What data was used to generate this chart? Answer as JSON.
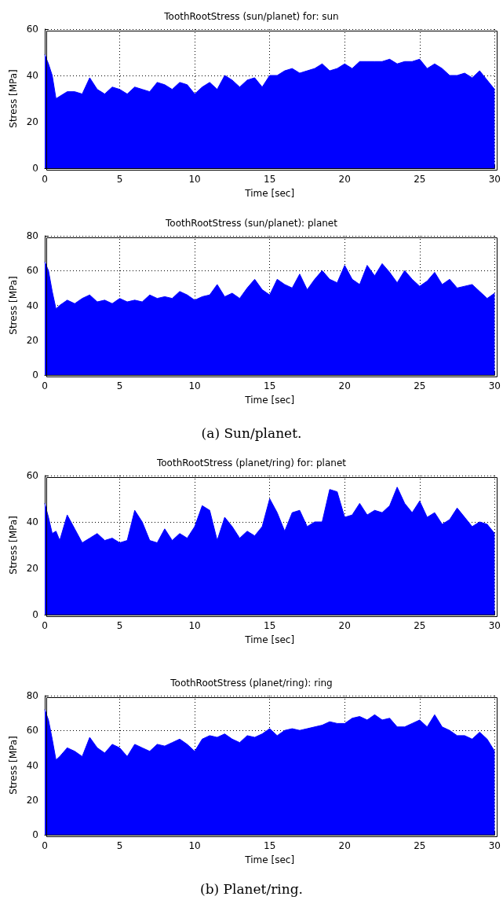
{
  "chart_data": [
    {
      "type": "area",
      "title": "ToothRootStress (sun/planet) for: sun",
      "xlabel": "Time [sec]",
      "ylabel": "Stress [MPa]",
      "xlim": [
        0,
        30
      ],
      "xticks": [
        0,
        5,
        10,
        15,
        20,
        25,
        30
      ],
      "ylim": [
        0,
        60
      ],
      "yticks": [
        0,
        20,
        40,
        60
      ],
      "grid": true,
      "x": [
        0,
        0.25,
        0.5,
        0.75,
        1,
        1.5,
        2,
        2.5,
        3,
        3.5,
        4,
        4.5,
        5,
        5.5,
        6,
        6.5,
        7,
        7.5,
        8,
        8.5,
        9,
        9.5,
        10,
        10.5,
        11,
        11.5,
        12,
        12.5,
        13,
        13.5,
        14,
        14.5,
        15,
        15.5,
        16,
        16.5,
        17,
        17.5,
        18,
        18.5,
        19,
        19.5,
        20,
        20.5,
        21,
        21.5,
        22,
        22.5,
        23,
        23.5,
        24,
        24.5,
        25,
        25.5,
        26,
        26.5,
        27,
        27.5,
        28,
        28.5,
        29,
        29.5,
        30
      ],
      "series": [
        {
          "color": "#0000ff",
          "values": [
            49,
            45,
            40,
            30,
            31,
            33,
            33,
            32,
            39,
            34,
            32,
            35,
            34,
            32,
            35,
            34,
            33,
            37,
            36,
            34,
            37,
            36,
            32,
            35,
            37,
            34,
            40,
            38,
            35,
            38,
            39,
            35,
            40,
            40,
            42,
            43,
            41,
            42,
            43,
            45,
            42,
            43,
            45,
            43,
            46,
            46,
            46,
            46,
            47,
            45,
            46,
            46,
            47,
            43,
            45,
            43,
            40,
            40,
            41,
            39,
            42,
            38,
            34
          ]
        }
      ]
    },
    {
      "type": "area",
      "title": "ToothRootStress (sun/planet): planet",
      "xlabel": "Time [sec]",
      "ylabel": "Stress [MPa]",
      "xlim": [
        0,
        30
      ],
      "xticks": [
        0,
        5,
        10,
        15,
        20,
        25,
        30
      ],
      "ylim": [
        0,
        80
      ],
      "yticks": [
        0,
        20,
        40,
        60,
        80
      ],
      "grid": true,
      "annotations": [
        "(a) Sun/planet."
      ],
      "x": [
        0,
        0.25,
        0.5,
        0.75,
        1,
        1.5,
        2,
        2.5,
        3,
        3.5,
        4,
        4.5,
        5,
        5.5,
        6,
        6.5,
        7,
        7.5,
        8,
        8.5,
        9,
        9.5,
        10,
        10.5,
        11,
        11.5,
        12,
        12.5,
        13,
        13.5,
        14,
        14.5,
        15,
        15.5,
        16,
        16.5,
        17,
        17.5,
        18,
        18.5,
        19,
        19.5,
        20,
        20.5,
        21,
        21.5,
        22,
        22.5,
        23,
        23.5,
        24,
        24.5,
        25,
        25.5,
        26,
        26.5,
        27,
        27.5,
        28,
        28.5,
        29,
        29.5,
        30
      ],
      "series": [
        {
          "color": "#0000ff",
          "values": [
            65,
            60,
            48,
            38,
            40,
            43,
            41,
            44,
            46,
            42,
            43,
            41,
            44,
            42,
            43,
            42,
            46,
            44,
            45,
            44,
            48,
            46,
            43,
            45,
            46,
            52,
            45,
            47,
            44,
            50,
            55,
            49,
            46,
            55,
            52,
            50,
            58,
            49,
            55,
            60,
            55,
            53,
            63,
            55,
            52,
            63,
            57,
            64,
            59,
            53,
            60,
            55,
            51,
            54,
            59,
            52,
            55,
            50,
            51,
            52,
            48,
            44,
            47
          ]
        }
      ]
    },
    {
      "type": "area",
      "title": "ToothRootStress (planet/ring) for: planet",
      "xlabel": "Time [sec]",
      "ylabel": "Stress [MPa]",
      "xlim": [
        0,
        30
      ],
      "xticks": [
        0,
        5,
        10,
        15,
        20,
        25,
        30
      ],
      "ylim": [
        0,
        60
      ],
      "yticks": [
        0,
        20,
        40,
        60
      ],
      "grid": true,
      "x": [
        0,
        0.25,
        0.5,
        0.75,
        1,
        1.5,
        2,
        2.5,
        3,
        3.5,
        4,
        4.5,
        5,
        5.5,
        6,
        6.5,
        7,
        7.5,
        8,
        8.5,
        9,
        9.5,
        10,
        10.5,
        11,
        11.5,
        12,
        12.5,
        13,
        13.5,
        14,
        14.5,
        15,
        15.5,
        16,
        16.5,
        17,
        17.5,
        18,
        18.5,
        19,
        19.5,
        20,
        20.5,
        21,
        21.5,
        22,
        22.5,
        23,
        23.5,
        24,
        24.5,
        25,
        25.5,
        26,
        26.5,
        27,
        27.5,
        28,
        28.5,
        29,
        29.5,
        30
      ],
      "series": [
        {
          "color": "#0000ff",
          "values": [
            48,
            42,
            35,
            36,
            32,
            43,
            37,
            31,
            33,
            35,
            32,
            33,
            31,
            32,
            45,
            40,
            32,
            31,
            37,
            32,
            35,
            33,
            38,
            47,
            45,
            32,
            42,
            38,
            33,
            36,
            34,
            38,
            50,
            44,
            36,
            44,
            45,
            38,
            40,
            40,
            54,
            53,
            42,
            43,
            48,
            43,
            45,
            44,
            47,
            55,
            48,
            44,
            49,
            42,
            44,
            39,
            41,
            46,
            42,
            38,
            40,
            39,
            35
          ]
        }
      ]
    },
    {
      "type": "area",
      "title": "ToothRootStress (planet/ring): ring",
      "xlabel": "Time [sec]",
      "ylabel": "Stress [MPa]",
      "xlim": [
        0,
        30
      ],
      "xticks": [
        0,
        5,
        10,
        15,
        20,
        25,
        30
      ],
      "ylim": [
        0,
        80
      ],
      "yticks": [
        0,
        20,
        40,
        60,
        80
      ],
      "grid": true,
      "annotations": [
        "(b) Planet/ring."
      ],
      "x": [
        0,
        0.25,
        0.5,
        0.75,
        1,
        1.5,
        2,
        2.5,
        3,
        3.5,
        4,
        4.5,
        5,
        5.5,
        6,
        6.5,
        7,
        7.5,
        8,
        8.5,
        9,
        9.5,
        10,
        10.5,
        11,
        11.5,
        12,
        12.5,
        13,
        13.5,
        14,
        14.5,
        15,
        15.5,
        16,
        16.5,
        17,
        17.5,
        18,
        18.5,
        19,
        19.5,
        20,
        20.5,
        21,
        21.5,
        22,
        22.5,
        23,
        23.5,
        24,
        24.5,
        25,
        25.5,
        26,
        26.5,
        27,
        27.5,
        28,
        28.5,
        29,
        29.5,
        30
      ],
      "series": [
        {
          "color": "#0000ff",
          "values": [
            72,
            66,
            55,
            43,
            45,
            50,
            48,
            45,
            56,
            50,
            47,
            52,
            50,
            45,
            52,
            50,
            48,
            52,
            51,
            53,
            55,
            52,
            48,
            55,
            57,
            56,
            58,
            55,
            53,
            57,
            56,
            58,
            61,
            57,
            60,
            61,
            60,
            61,
            62,
            63,
            65,
            64,
            64,
            67,
            68,
            66,
            69,
            66,
            67,
            62,
            62,
            64,
            66,
            62,
            69,
            62,
            60,
            57,
            57,
            55,
            59,
            55,
            48
          ]
        }
      ]
    }
  ]
}
